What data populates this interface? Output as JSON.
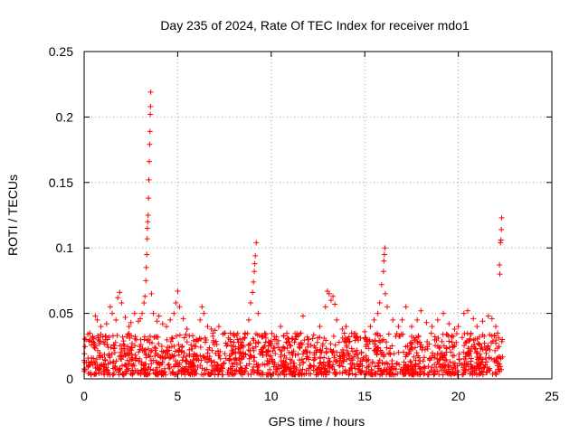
{
  "chart_data": {
    "type": "scatter",
    "title": "Day 235 of 2024, Rate Of TEC Index for receiver mdo1",
    "xlabel": "GPS time / hours",
    "ylabel": "ROTI / TECUs",
    "xlim": [
      0,
      25
    ],
    "ylim": [
      0,
      0.25
    ],
    "grid": true,
    "marker": "+",
    "color": "#ff0000",
    "xticks": [
      0,
      5,
      10,
      15,
      20,
      25
    ],
    "yticks": [
      0,
      0.05,
      0.1,
      0.15,
      0.2,
      0.25
    ],
    "xtick_labels": [
      "0",
      "5",
      "10",
      "15",
      "20",
      "25"
    ],
    "ytick_labels": [
      "0",
      "0.05",
      "0.1",
      "0.15",
      "0.2",
      "0.25"
    ],
    "x_data_range": [
      0,
      22.4
    ],
    "baseline_band": [
      0.003,
      0.035
    ],
    "series": [
      {
        "name": "ROTI",
        "points": [
          [
            0.1,
            0.03
          ],
          [
            0.2,
            0.034
          ],
          [
            0.3,
            0.035
          ],
          [
            0.5,
            0.028
          ],
          [
            0.6,
            0.048
          ],
          [
            0.7,
            0.045
          ],
          [
            0.9,
            0.04
          ],
          [
            1.0,
            0.032
          ],
          [
            1.2,
            0.042
          ],
          [
            1.4,
            0.055
          ],
          [
            1.5,
            0.05
          ],
          [
            1.7,
            0.045
          ],
          [
            1.8,
            0.062
          ],
          [
            1.9,
            0.066
          ],
          [
            2.0,
            0.058
          ],
          [
            2.2,
            0.047
          ],
          [
            2.4,
            0.04
          ],
          [
            2.5,
            0.043
          ],
          [
            2.7,
            0.05
          ],
          [
            2.9,
            0.044
          ],
          [
            3.0,
            0.046
          ],
          [
            3.1,
            0.05
          ],
          [
            3.2,
            0.058
          ],
          [
            3.25,
            0.063
          ],
          [
            3.3,
            0.075
          ],
          [
            3.32,
            0.085
          ],
          [
            3.35,
            0.095
          ],
          [
            3.37,
            0.107
          ],
          [
            3.38,
            0.115
          ],
          [
            3.4,
            0.12
          ],
          [
            3.42,
            0.125
          ],
          [
            3.44,
            0.138
          ],
          [
            3.46,
            0.152
          ],
          [
            3.48,
            0.166
          ],
          [
            3.5,
            0.179
          ],
          [
            3.52,
            0.189
          ],
          [
            3.54,
            0.202
          ],
          [
            3.55,
            0.208
          ],
          [
            3.56,
            0.219
          ],
          [
            3.6,
            0.065
          ],
          [
            3.7,
            0.05
          ],
          [
            3.9,
            0.044
          ],
          [
            4.0,
            0.048
          ],
          [
            4.2,
            0.042
          ],
          [
            4.4,
            0.04
          ],
          [
            4.6,
            0.045
          ],
          [
            4.8,
            0.05
          ],
          [
            4.9,
            0.058
          ],
          [
            5.0,
            0.067
          ],
          [
            5.1,
            0.055
          ],
          [
            5.3,
            0.046
          ],
          [
            5.5,
            0.038
          ],
          [
            5.8,
            0.033
          ],
          [
            6.0,
            0.03
          ],
          [
            6.2,
            0.045
          ],
          [
            6.3,
            0.055
          ],
          [
            6.4,
            0.05
          ],
          [
            6.6,
            0.04
          ],
          [
            6.8,
            0.038
          ],
          [
            7.0,
            0.037
          ],
          [
            7.2,
            0.04
          ],
          [
            7.5,
            0.035
          ],
          [
            7.8,
            0.03
          ],
          [
            8.0,
            0.028
          ],
          [
            8.2,
            0.03
          ],
          [
            8.4,
            0.028
          ],
          [
            8.6,
            0.035
          ],
          [
            8.8,
            0.045
          ],
          [
            8.9,
            0.058
          ],
          [
            9.0,
            0.066
          ],
          [
            9.05,
            0.074
          ],
          [
            9.1,
            0.082
          ],
          [
            9.12,
            0.088
          ],
          [
            9.15,
            0.094
          ],
          [
            9.2,
            0.104
          ],
          [
            9.3,
            0.05
          ],
          [
            9.5,
            0.032
          ],
          [
            9.7,
            0.028
          ],
          [
            10.0,
            0.025
          ],
          [
            10.2,
            0.03
          ],
          [
            10.5,
            0.04
          ],
          [
            10.8,
            0.028
          ],
          [
            11.0,
            0.026
          ],
          [
            11.3,
            0.03
          ],
          [
            11.5,
            0.034
          ],
          [
            11.7,
            0.048
          ],
          [
            12.0,
            0.03
          ],
          [
            12.3,
            0.025
          ],
          [
            12.6,
            0.04
          ],
          [
            12.9,
            0.055
          ],
          [
            13.0,
            0.067
          ],
          [
            13.1,
            0.065
          ],
          [
            13.2,
            0.06
          ],
          [
            13.3,
            0.063
          ],
          [
            13.4,
            0.057
          ],
          [
            13.5,
            0.045
          ],
          [
            13.8,
            0.038
          ],
          [
            14.0,
            0.04
          ],
          [
            14.3,
            0.035
          ],
          [
            14.6,
            0.032
          ],
          [
            15.0,
            0.036
          ],
          [
            15.3,
            0.04
          ],
          [
            15.5,
            0.045
          ],
          [
            15.7,
            0.05
          ],
          [
            15.8,
            0.058
          ],
          [
            15.9,
            0.072
          ],
          [
            16.0,
            0.082
          ],
          [
            16.02,
            0.09
          ],
          [
            16.05,
            0.095
          ],
          [
            16.08,
            0.1
          ],
          [
            16.1,
            0.065
          ],
          [
            16.2,
            0.055
          ],
          [
            16.5,
            0.045
          ],
          [
            16.8,
            0.04
          ],
          [
            17.0,
            0.045
          ],
          [
            17.2,
            0.055
          ],
          [
            17.5,
            0.04
          ],
          [
            17.8,
            0.045
          ],
          [
            18.0,
            0.052
          ],
          [
            18.3,
            0.043
          ],
          [
            18.6,
            0.04
          ],
          [
            18.9,
            0.045
          ],
          [
            19.2,
            0.05
          ],
          [
            19.5,
            0.042
          ],
          [
            19.8,
            0.038
          ],
          [
            20.0,
            0.04
          ],
          [
            20.3,
            0.05
          ],
          [
            20.5,
            0.052
          ],
          [
            20.8,
            0.046
          ],
          [
            21.0,
            0.04
          ],
          [
            21.3,
            0.044
          ],
          [
            21.6,
            0.048
          ],
          [
            21.8,
            0.046
          ],
          [
            22.0,
            0.04
          ],
          [
            22.1,
            0.035
          ],
          [
            22.2,
            0.087
          ],
          [
            22.22,
            0.08
          ],
          [
            22.25,
            0.104
          ],
          [
            22.28,
            0.106
          ],
          [
            22.3,
            0.114
          ],
          [
            22.32,
            0.123
          ],
          [
            22.35,
            0.03
          ]
        ]
      }
    ]
  }
}
